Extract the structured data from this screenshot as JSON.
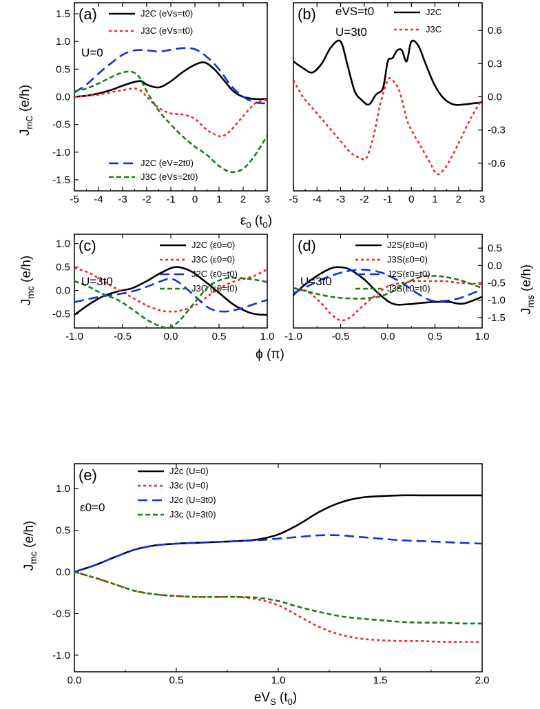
{
  "colors": {
    "black": "#000000",
    "red": "#ff2020",
    "blue": "#1030e0",
    "green": "#1a7a1a"
  },
  "figure_labels": {
    "y_mc_upper": "J",
    "y_mc_upper_sub": "mC",
    "y_mc": "J",
    "y_mc_sub": "mc",
    "y_ms": "J",
    "y_ms_sub": "ms",
    "unit": "(e/h)",
    "x_eps_main": "ε",
    "x_eps_sub": "0",
    "x_eps_unit": "(t",
    "x_eps_unit_sub": "0",
    "x_eps_close": ")",
    "x_phi": "ϕ (π)",
    "x_ev_main": "eV",
    "x_ev_sub": "S",
    "x_ev_unit": "(t",
    "x_ev_unit_sub": "0",
    "x_ev_close": ")"
  },
  "chart_data": [
    {
      "panel": "(a)",
      "type": "line",
      "annotation": "U=0",
      "xlim": [
        -5,
        3
      ],
      "ylim": [
        -1.7,
        1.7
      ],
      "xticks": [
        -5,
        -4,
        -3,
        -2,
        -1,
        0,
        1,
        2,
        3
      ],
      "yticks": [
        -1.5,
        -1.0,
        -0.5,
        0.0,
        0.5,
        1.0,
        1.5
      ],
      "yaxis": "left",
      "series": [
        {
          "name": "J2C (eVs=t0)",
          "color": "black",
          "dash": "solid",
          "x": [
            -5,
            -4.5,
            -4,
            -3.5,
            -3,
            -2.5,
            -2.2,
            -2,
            -1.5,
            -1,
            -0.5,
            0,
            0.4,
            0.8,
            1.2,
            1.6,
            2,
            2.5,
            3
          ],
          "y": [
            0.0,
            0.02,
            0.06,
            0.12,
            0.2,
            0.27,
            0.28,
            0.22,
            0.17,
            0.28,
            0.45,
            0.58,
            0.62,
            0.5,
            0.3,
            0.1,
            0.0,
            -0.04,
            -0.04
          ]
        },
        {
          "name": "J3C (eVs=t0)",
          "color": "red",
          "dash": "dot",
          "x": [
            -5,
            -4.5,
            -4,
            -3.5,
            -3,
            -2.5,
            -2.2,
            -2,
            -1.5,
            -1,
            -0.5,
            0,
            0.5,
            1,
            1.2,
            1.5,
            2,
            2.5,
            3
          ],
          "y": [
            0.0,
            0.02,
            0.04,
            0.08,
            0.12,
            0.15,
            0.1,
            0.0,
            -0.2,
            -0.3,
            -0.32,
            -0.4,
            -0.6,
            -0.71,
            -0.7,
            -0.6,
            -0.35,
            -0.12,
            -0.05
          ]
        },
        {
          "name": "J2C (eV=2t0)",
          "color": "blue",
          "dash": "dash",
          "x": [
            -5,
            -4.5,
            -4,
            -3.5,
            -3,
            -2.5,
            -2,
            -1.5,
            -1,
            -0.5,
            0,
            0.5,
            1,
            1.5,
            2,
            2.5,
            3
          ],
          "y": [
            0.08,
            0.22,
            0.42,
            0.6,
            0.76,
            0.84,
            0.84,
            0.82,
            0.85,
            0.88,
            0.86,
            0.72,
            0.5,
            0.2,
            0.0,
            -0.1,
            -0.12
          ]
        },
        {
          "name": "J3C (eVs=2t0)",
          "color": "green",
          "dash": "shortdash",
          "x": [
            -5,
            -4.5,
            -4,
            -3.5,
            -3,
            -2.6,
            -2.3,
            -2,
            -1.5,
            -1,
            -0.5,
            0,
            0.5,
            1,
            1.5,
            2,
            2.5,
            3
          ],
          "y": [
            0.1,
            0.15,
            0.24,
            0.35,
            0.44,
            0.45,
            0.35,
            0.1,
            -0.25,
            -0.5,
            -0.72,
            -0.9,
            -1.05,
            -1.25,
            -1.36,
            -1.3,
            -1.05,
            -0.7
          ]
        }
      ]
    },
    {
      "panel": "(b)",
      "type": "line",
      "annotation": "U=3t0",
      "annotation2": "eVS=t0",
      "xlim": [
        -5,
        3
      ],
      "ylim": [
        -0.85,
        0.85
      ],
      "xticks": [
        -5,
        -4,
        -3,
        -2,
        -1,
        0,
        1,
        2,
        3
      ],
      "yticks": [
        -0.6,
        -0.3,
        0.0,
        0.3,
        0.6
      ],
      "yaxis": "right",
      "series": [
        {
          "name": "J2C",
          "color": "black",
          "dash": "solid",
          "x": [
            -5,
            -4.6,
            -4.2,
            -3.8,
            -3.4,
            -3,
            -2.7,
            -2.4,
            -2.1,
            -1.8,
            -1.5,
            -1.2,
            -1,
            -0.8,
            -0.6,
            -0.4,
            -0.2,
            0,
            0.3,
            0.6,
            1,
            1.4,
            1.8,
            2.2,
            2.6,
            3
          ],
          "y": [
            0.32,
            0.26,
            0.22,
            0.3,
            0.45,
            0.5,
            0.28,
            0.05,
            -0.03,
            -0.07,
            0.02,
            0.08,
            0.32,
            0.35,
            0.42,
            0.42,
            0.32,
            0.5,
            0.46,
            0.3,
            0.1,
            -0.02,
            -0.07,
            -0.07,
            -0.06,
            -0.05
          ]
        },
        {
          "name": "J3C",
          "color": "red",
          "dash": "dot",
          "x": [
            -5,
            -4.6,
            -4.2,
            -3.8,
            -3.4,
            -3,
            -2.6,
            -2.2,
            -1.9,
            -1.6,
            -1.3,
            -1.0,
            -0.8,
            -0.5,
            -0.2,
            0,
            0.4,
            0.8,
            1.1,
            1.5,
            2,
            2.5,
            3
          ],
          "y": [
            0.15,
            0.0,
            -0.1,
            -0.2,
            -0.3,
            -0.4,
            -0.5,
            -0.55,
            -0.55,
            -0.35,
            -0.05,
            0.15,
            0.15,
            0.05,
            -0.2,
            -0.3,
            -0.45,
            -0.6,
            -0.7,
            -0.62,
            -0.42,
            -0.2,
            -0.02
          ]
        }
      ]
    },
    {
      "panel": "(c)",
      "type": "line",
      "annotation": "U=3t0",
      "xlim": [
        -1.0,
        1.0
      ],
      "ylim": [
        -0.8,
        1.2
      ],
      "xticks": [
        -1.0,
        -0.5,
        0.0,
        0.5,
        1.0
      ],
      "yticks": [
        -0.5,
        0.0,
        0.5,
        1.0
      ],
      "yaxis": "left",
      "series": [
        {
          "name": "J2C (ε0=0)",
          "color": "black",
          "dash": "solid",
          "x": [
            -1.0,
            -0.85,
            -0.7,
            -0.55,
            -0.4,
            -0.25,
            -0.1,
            0.05,
            0.2,
            0.35,
            0.5,
            0.65,
            0.8,
            0.9,
            1.0
          ],
          "y": [
            -0.52,
            -0.3,
            -0.12,
            -0.02,
            0.05,
            0.2,
            0.38,
            0.5,
            0.42,
            0.2,
            -0.05,
            -0.3,
            -0.46,
            -0.51,
            -0.52
          ]
        },
        {
          "name": "J3C (ε0=0)",
          "color": "red",
          "dash": "dot",
          "x": [
            -1.0,
            -0.85,
            -0.7,
            -0.55,
            -0.4,
            -0.25,
            -0.1,
            0.0,
            0.1,
            0.25,
            0.4,
            0.55,
            0.7,
            0.85,
            1.0
          ],
          "y": [
            0.48,
            0.38,
            0.2,
            0.02,
            -0.15,
            -0.32,
            -0.43,
            -0.45,
            -0.43,
            -0.32,
            -0.1,
            0.1,
            0.22,
            0.3,
            0.45
          ]
        },
        {
          "name": "J2C (ε0=t0)",
          "color": "blue",
          "dash": "dash",
          "x": [
            -1.0,
            -0.85,
            -0.7,
            -0.55,
            -0.4,
            -0.25,
            -0.1,
            0.0,
            0.1,
            0.25,
            0.4,
            0.55,
            0.7,
            0.85,
            1.0
          ],
          "y": [
            -0.25,
            -0.18,
            -0.12,
            -0.08,
            -0.02,
            0.08,
            0.2,
            0.25,
            0.15,
            -0.12,
            -0.38,
            -0.45,
            -0.4,
            -0.3,
            -0.2
          ]
        },
        {
          "name": "J3C (ε0=t0)",
          "color": "green",
          "dash": "shortdash",
          "x": [
            -1.0,
            -0.85,
            -0.7,
            -0.55,
            -0.4,
            -0.25,
            -0.1,
            0.0,
            0.1,
            0.25,
            0.4,
            0.55,
            0.65,
            0.8,
            0.9,
            1.0
          ],
          "y": [
            0.2,
            0.08,
            -0.08,
            -0.2,
            -0.4,
            -0.62,
            -0.77,
            -0.78,
            -0.62,
            -0.25,
            0.1,
            0.25,
            0.27,
            0.25,
            0.22,
            0.18
          ]
        }
      ]
    },
    {
      "panel": "(d)",
      "type": "line",
      "annotation": "U=3t0",
      "xlim": [
        -1.0,
        1.0
      ],
      "ylim": [
        -1.8,
        0.9
      ],
      "xticks": [
        -1.0,
        -0.5,
        0.0,
        0.5,
        1.0
      ],
      "yticks": [
        -1.5,
        -1.0,
        -0.5,
        0.0,
        0.5
      ],
      "yaxis": "right",
      "series": [
        {
          "name": "J2S(ε0=0)",
          "color": "black",
          "dash": "solid",
          "x": [
            -1.0,
            -0.9,
            -0.75,
            -0.6,
            -0.5,
            -0.4,
            -0.25,
            -0.1,
            0.05,
            0.2,
            0.35,
            0.5,
            0.65,
            0.8,
            1.0
          ],
          "y": [
            -0.85,
            -0.6,
            -0.3,
            -0.08,
            -0.05,
            -0.12,
            -0.4,
            -0.8,
            -1.1,
            -1.12,
            -1.08,
            -1.05,
            -1.05,
            -1.1,
            -0.9
          ]
        },
        {
          "name": "J3S(ε0=0)",
          "color": "red",
          "dash": "dot",
          "x": [
            -1.0,
            -0.85,
            -0.7,
            -0.6,
            -0.5,
            -0.4,
            -0.3,
            -0.15,
            0.0,
            0.15,
            0.3,
            0.45,
            0.6,
            0.75,
            0.9,
            1.0
          ],
          "y": [
            -0.65,
            -0.75,
            -1.1,
            -1.4,
            -1.58,
            -1.5,
            -1.25,
            -0.9,
            -0.6,
            -0.5,
            -0.45,
            -0.45,
            -0.45,
            -0.5,
            -0.52,
            -0.55
          ]
        },
        {
          "name": "J2S(ε0=t0)",
          "color": "blue",
          "dash": "dash",
          "x": [
            -1.0,
            -0.85,
            -0.7,
            -0.55,
            -0.4,
            -0.25,
            -0.1,
            0.0,
            0.15,
            0.3,
            0.45,
            0.6,
            0.75,
            0.9,
            1.0
          ],
          "y": [
            -0.8,
            -0.6,
            -0.4,
            -0.25,
            -0.15,
            -0.12,
            -0.18,
            -0.28,
            -0.5,
            -0.78,
            -1.0,
            -1.02,
            -0.95,
            -0.8,
            -0.68
          ]
        },
        {
          "name": "J3S(ε0=t0)",
          "color": "green",
          "dash": "shortdash",
          "x": [
            -1.0,
            -0.85,
            -0.7,
            -0.55,
            -0.4,
            -0.25,
            -0.1,
            0.05,
            0.2,
            0.35,
            0.5,
            0.65,
            0.8,
            1.0
          ],
          "y": [
            -0.65,
            -0.75,
            -0.85,
            -0.92,
            -0.95,
            -0.95,
            -0.9,
            -0.75,
            -0.5,
            -0.33,
            -0.3,
            -0.35,
            -0.45,
            -0.65
          ]
        }
      ]
    },
    {
      "panel": "(e)",
      "type": "line",
      "annotation": "ε0=0",
      "xlim": [
        0.0,
        2.0
      ],
      "ylim": [
        -1.2,
        1.3
      ],
      "xticks": [
        0.0,
        0.5,
        1.0,
        1.5,
        2.0
      ],
      "yticks": [
        -1.0,
        -0.5,
        0.0,
        0.5,
        1.0
      ],
      "yaxis": "left",
      "series": [
        {
          "name": "J2c (U=0)",
          "color": "black",
          "dash": "solid",
          "x": [
            0.0,
            0.1,
            0.2,
            0.3,
            0.4,
            0.5,
            0.6,
            0.7,
            0.8,
            0.9,
            1.0,
            1.1,
            1.2,
            1.3,
            1.4,
            1.5,
            1.6,
            1.7,
            1.8,
            1.9,
            2.0
          ],
          "y": [
            0.0,
            0.08,
            0.18,
            0.27,
            0.32,
            0.34,
            0.35,
            0.36,
            0.37,
            0.39,
            0.45,
            0.57,
            0.72,
            0.83,
            0.89,
            0.91,
            0.92,
            0.92,
            0.92,
            0.92,
            0.92
          ]
        },
        {
          "name": "J3c (U=0)",
          "color": "red",
          "dash": "dot",
          "x": [
            0.0,
            0.1,
            0.2,
            0.3,
            0.4,
            0.5,
            0.6,
            0.7,
            0.8,
            0.9,
            1.0,
            1.1,
            1.2,
            1.3,
            1.4,
            1.5,
            1.6,
            1.7,
            1.8,
            1.9,
            2.0
          ],
          "y": [
            0.0,
            -0.07,
            -0.15,
            -0.23,
            -0.27,
            -0.29,
            -0.3,
            -0.3,
            -0.3,
            -0.33,
            -0.4,
            -0.53,
            -0.66,
            -0.75,
            -0.8,
            -0.82,
            -0.83,
            -0.83,
            -0.84,
            -0.84,
            -0.84
          ]
        },
        {
          "name": "J2c (U=3t0)",
          "color": "blue",
          "dash": "dash",
          "x": [
            0.0,
            0.1,
            0.2,
            0.3,
            0.4,
            0.5,
            0.6,
            0.7,
            0.8,
            0.9,
            1.0,
            1.1,
            1.2,
            1.3,
            1.4,
            1.5,
            1.6,
            1.7,
            1.8,
            1.9,
            2.0
          ],
          "y": [
            0.0,
            0.08,
            0.18,
            0.27,
            0.32,
            0.34,
            0.35,
            0.36,
            0.37,
            0.38,
            0.4,
            0.42,
            0.44,
            0.44,
            0.42,
            0.4,
            0.38,
            0.37,
            0.36,
            0.35,
            0.34
          ]
        },
        {
          "name": "J3c (U=3t0)",
          "color": "green",
          "dash": "shortdash",
          "x": [
            0.0,
            0.1,
            0.2,
            0.3,
            0.4,
            0.5,
            0.6,
            0.7,
            0.8,
            0.9,
            1.0,
            1.1,
            1.2,
            1.3,
            1.4,
            1.5,
            1.6,
            1.7,
            1.8,
            1.9,
            2.0
          ],
          "y": [
            0.0,
            -0.07,
            -0.15,
            -0.23,
            -0.27,
            -0.29,
            -0.3,
            -0.3,
            -0.3,
            -0.31,
            -0.35,
            -0.42,
            -0.48,
            -0.53,
            -0.56,
            -0.58,
            -0.6,
            -0.61,
            -0.61,
            -0.62,
            -0.62
          ]
        }
      ]
    }
  ]
}
